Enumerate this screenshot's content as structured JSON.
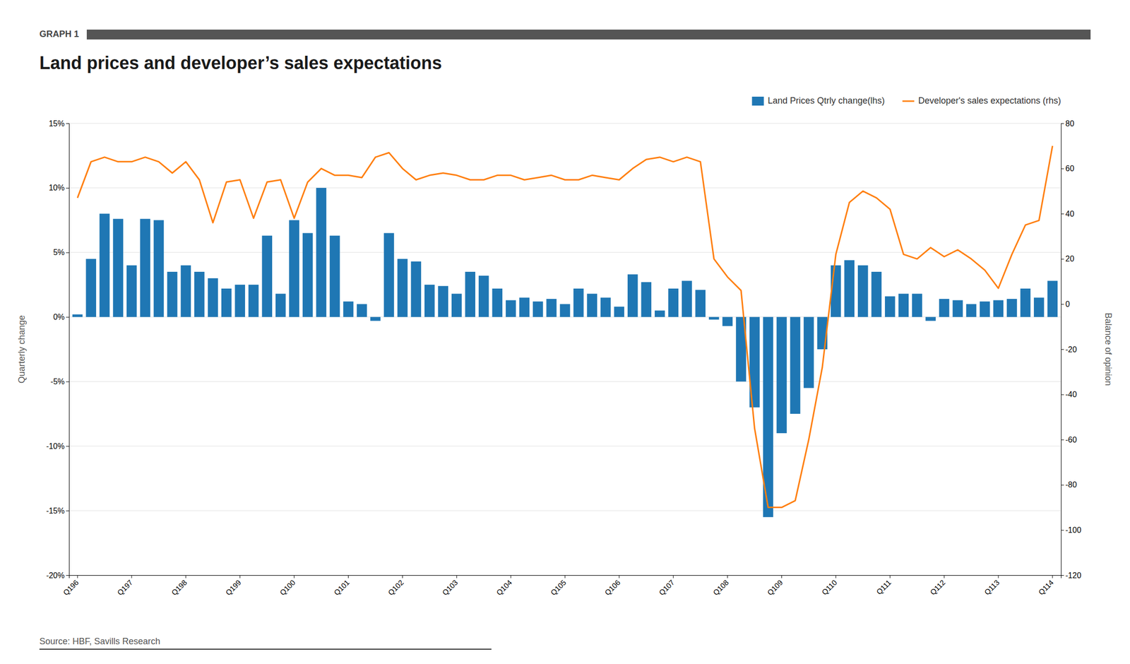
{
  "chart_data": {
    "type": "bar",
    "title": "Land prices and developer’s sales expectations",
    "annotations": [
      "GRAPH 1",
      "Source: HBF, Savills Research"
    ],
    "y_label": "Quarterly change",
    "y2_label": "Balance of opinion",
    "categories": [
      "Q196",
      null,
      null,
      null,
      "Q197",
      null,
      null,
      null,
      "Q198",
      null,
      null,
      null,
      "Q199",
      null,
      null,
      null,
      "Q100",
      null,
      null,
      null,
      "Q101",
      null,
      null,
      null,
      "Q102",
      null,
      null,
      null,
      "Q103",
      null,
      null,
      null,
      "Q104",
      null,
      null,
      null,
      "Q105",
      null,
      null,
      null,
      "Q106",
      null,
      null,
      null,
      "Q107",
      null,
      null,
      null,
      "Q108",
      null,
      null,
      null,
      "Q109",
      null,
      null,
      null,
      "Q110",
      null,
      null,
      null,
      "Q111",
      null,
      null,
      null,
      "Q112",
      null,
      null,
      null,
      "Q113",
      null,
      null,
      null,
      "Q114"
    ],
    "series": [
      {
        "name": "Land Prices Qtrly change(lhs)",
        "type": "bar",
        "values": [
          0.002,
          0.045,
          0.08,
          0.076,
          0.04,
          0.076,
          0.075,
          0.035,
          0.04,
          0.035,
          0.03,
          0.022,
          0.025,
          0.025,
          0.063,
          0.018,
          0.075,
          0.065,
          0.1,
          0.063,
          0.012,
          0.01,
          -0.003,
          0.065,
          0.045,
          0.043,
          0.025,
          0.024,
          0.018,
          0.035,
          0.032,
          0.022,
          0.013,
          0.015,
          0.012,
          0.014,
          0.01,
          0.022,
          0.018,
          0.015,
          0.008,
          0.033,
          0.027,
          0.005,
          0.022,
          0.028,
          0.021,
          -0.002,
          -0.007,
          -0.05,
          -0.07,
          -0.155,
          -0.09,
          -0.075,
          -0.055,
          -0.025,
          0.04,
          0.044,
          0.04,
          0.035,
          0.016,
          0.018,
          0.018,
          -0.003,
          0.014,
          0.013,
          0.01,
          0.012,
          0.013,
          0.014,
          0.022,
          0.015,
          0.028
        ]
      },
      {
        "name": "Developer's sales expectations (rhs)",
        "type": "line",
        "axis": "y2",
        "values": [
          47,
          63,
          65,
          63,
          63,
          65,
          63,
          58,
          63,
          55,
          36,
          54,
          55,
          38,
          54,
          55,
          38,
          54,
          60,
          57,
          57,
          56,
          65,
          67,
          60,
          55,
          57,
          58,
          57,
          55,
          55,
          57,
          57,
          55,
          56,
          57,
          55,
          55,
          57,
          56,
          55,
          60,
          64,
          65,
          63,
          65,
          63,
          20,
          12,
          6,
          -55,
          -90,
          -90,
          -87,
          -60,
          -28,
          22,
          45,
          50,
          47,
          42,
          22,
          20,
          25,
          21,
          24,
          20,
          15,
          7,
          22,
          35,
          37,
          70
        ]
      }
    ],
    "ylim": [
      -0.2,
      0.15
    ],
    "yticks": [
      {
        "value": -0.2,
        "label": "-20%"
      },
      {
        "value": -0.15,
        "label": "-15%"
      },
      {
        "value": -0.1,
        "label": "-10%"
      },
      {
        "value": -0.05,
        "label": "-5%"
      },
      {
        "value": 0.0,
        "label": "0%"
      },
      {
        "value": 0.05,
        "label": "5%"
      },
      {
        "value": 0.1,
        "label": "10%"
      },
      {
        "value": 0.15,
        "label": "15%"
      }
    ],
    "y2lim": [
      -120,
      80
    ],
    "y2ticks": [
      -120,
      -100,
      -80,
      -60,
      -40,
      -20,
      0,
      20,
      40,
      60,
      80
    ],
    "grid": true,
    "legend": "top-right"
  }
}
